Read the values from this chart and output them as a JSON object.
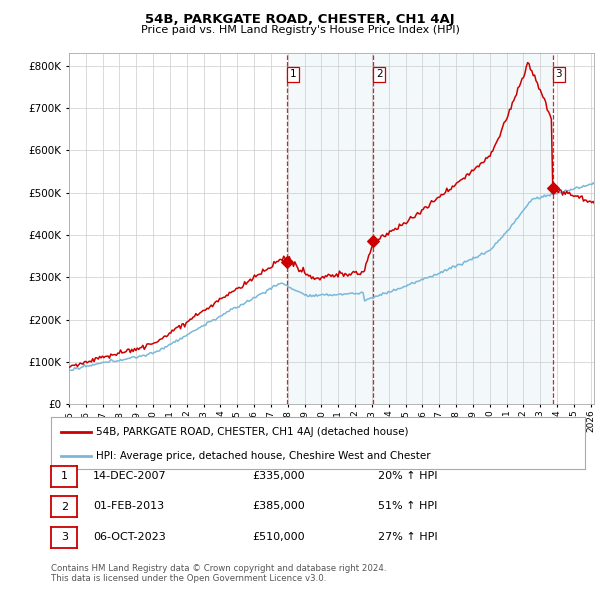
{
  "title": "54B, PARKGATE ROAD, CHESTER, CH1 4AJ",
  "subtitle": "Price paid vs. HM Land Registry's House Price Index (HPI)",
  "ytick_values": [
    0,
    100000,
    200000,
    300000,
    400000,
    500000,
    600000,
    700000,
    800000
  ],
  "ylim": [
    0,
    830000
  ],
  "xlim_start": 1995.3,
  "xlim_end": 2026.2,
  "sale_dates": [
    2007.96,
    2013.08,
    2023.76
  ],
  "sale_prices": [
    335000,
    385000,
    510000
  ],
  "sale_labels": [
    "1",
    "2",
    "3"
  ],
  "hpi_color": "#7ab8d9",
  "price_color": "#cc0000",
  "vline_color": "#cc0000",
  "shade_color": "#daeaf5",
  "legend_entries": [
    "54B, PARKGATE ROAD, CHESTER, CH1 4AJ (detached house)",
    "HPI: Average price, detached house, Cheshire West and Chester"
  ],
  "table_data": [
    [
      "1",
      "14-DEC-2007",
      "£335,000",
      "20% ↑ HPI"
    ],
    [
      "2",
      "01-FEB-2013",
      "£385,000",
      "51% ↑ HPI"
    ],
    [
      "3",
      "06-OCT-2023",
      "£510,000",
      "27% ↑ HPI"
    ]
  ],
  "footnote": "Contains HM Land Registry data © Crown copyright and database right 2024.\nThis data is licensed under the Open Government Licence v3.0.",
  "background_color": "#ffffff",
  "grid_color": "#cccccc",
  "xtick_years": [
    1995,
    1996,
    1997,
    1998,
    1999,
    2000,
    2001,
    2002,
    2003,
    2004,
    2005,
    2006,
    2007,
    2008,
    2009,
    2010,
    2011,
    2012,
    2013,
    2014,
    2015,
    2016,
    2017,
    2018,
    2019,
    2020,
    2021,
    2022,
    2023,
    2024,
    2025,
    2026
  ]
}
